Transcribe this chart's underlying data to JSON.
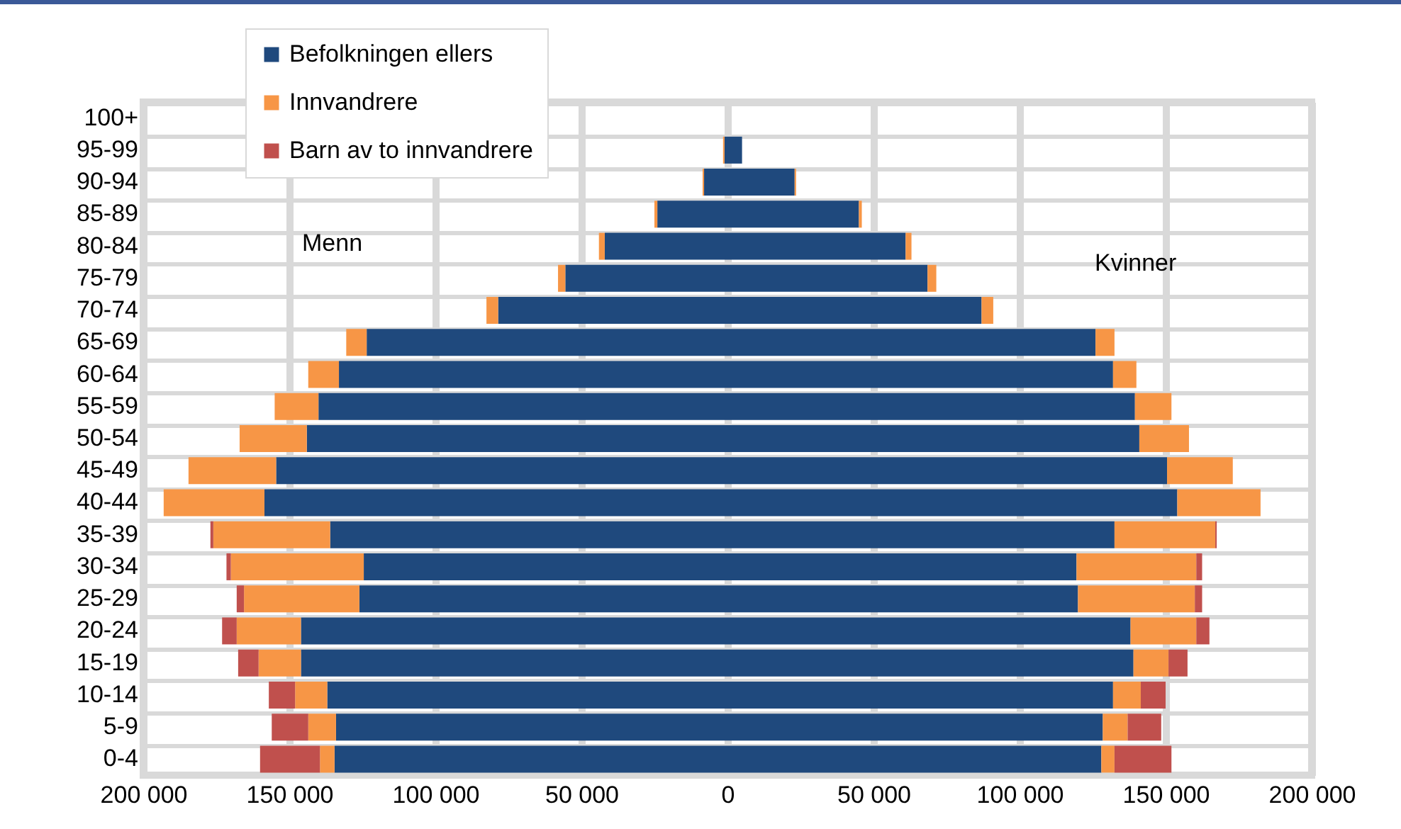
{
  "chart_data": {
    "type": "bar",
    "orientation": "horizontal",
    "stacked": true,
    "categories": [
      "100+",
      "95-99",
      "90-94",
      "85-89",
      "80-84",
      "75-79",
      "70-74",
      "65-69",
      "60-64",
      "55-59",
      "50-54",
      "45-49",
      "40-44",
      "35-39",
      "30-34",
      "25-29",
      "20-24",
      "15-19",
      "10-14",
      "5-9",
      "0-4"
    ],
    "series": [
      {
        "color": "#1f497d",
        "values": [
          0,
          -1000,
          -8000,
          -24000,
          -42000,
          -55500,
          -78500,
          -123500,
          -133000,
          -140000,
          -144000,
          -154500,
          -158500,
          -136000,
          -124500,
          -126000,
          -146000,
          -146000,
          -137000,
          -134000,
          -134500
        ]
      },
      {
        "color": "#f79646",
        "values": [
          0,
          -500,
          -500,
          -1000,
          -2000,
          -2500,
          -4000,
          -7000,
          -10500,
          -15000,
          -23000,
          -30000,
          -34500,
          -40000,
          -45500,
          -39500,
          -22000,
          -14500,
          -11000,
          -9500,
          -5000
        ]
      },
      {
        "color": "#c0504d",
        "values": [
          0,
          0,
          0,
          0,
          0,
          0,
          0,
          0,
          0,
          0,
          0,
          0,
          0,
          -1000,
          -1500,
          -2500,
          -5000,
          -7000,
          -9000,
          -12500,
          -20500
        ]
      },
      {
        "name": "Befolkningen ellers",
        "color": "#1f497d",
        "values": [
          0,
          5000,
          23000,
          45000,
          61000,
          68500,
          87000,
          126000,
          132000,
          139500,
          141000,
          150500,
          154000,
          132500,
          119500,
          120000,
          138000,
          139000,
          132000,
          128500,
          128000
        ]
      },
      {
        "name": "Innvandrere",
        "color": "#f79646",
        "values": [
          0,
          0,
          500,
          1000,
          2000,
          3000,
          4000,
          6500,
          8000,
          12500,
          17000,
          22500,
          28500,
          34500,
          41000,
          40000,
          22500,
          12000,
          9500,
          8500,
          4500
        ]
      },
      {
        "name": "Barn av to innvandrere",
        "color": "#c0504d",
        "values": [
          0,
          0,
          0,
          0,
          0,
          0,
          0,
          0,
          0,
          0,
          0,
          0,
          0,
          500,
          2000,
          2500,
          4500,
          6500,
          8500,
          11500,
          19500
        ]
      }
    ],
    "xlim": [
      -200000,
      200000
    ],
    "xticks": [
      {
        "value": -200000,
        "label": "200 000"
      },
      {
        "value": -150000,
        "label": "150 000"
      },
      {
        "value": -100000,
        "label": "100 000"
      },
      {
        "value": -50000,
        "label": "50 000"
      },
      0,
      {
        "value": 50000,
        "label": "50 000"
      },
      {
        "value": 100000,
        "label": "100 000"
      },
      {
        "value": 150000,
        "label": "150 000"
      },
      {
        "value": 200000,
        "label": "200 000"
      }
    ],
    "grid": true,
    "legend": "top left",
    "annotations": [
      "Menn",
      "Kvinner"
    ]
  }
}
